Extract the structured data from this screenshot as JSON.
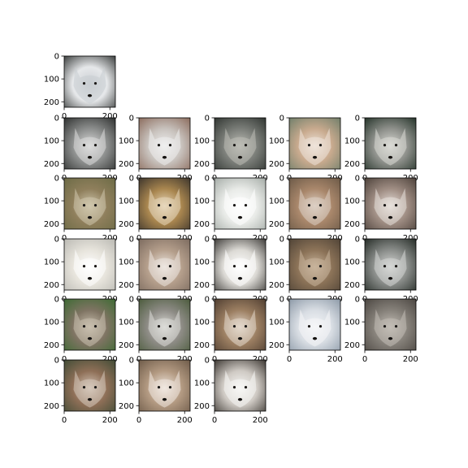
{
  "figure": {
    "background": "#ffffff",
    "axis_color": "#000000"
  },
  "chart_data": {
    "type": "image-grid",
    "title": "",
    "xlabel": "",
    "ylabel": "",
    "xlim": [
      0,
      224
    ],
    "ylim": [
      224,
      0
    ],
    "x_ticks": [
      0,
      200
    ],
    "y_ticks": [
      0,
      100,
      200
    ],
    "grid": false,
    "panels": [
      {
        "row": 0,
        "col": 0,
        "subject": "white wolf, dark background",
        "palette": [
          "#3a3d3c",
          "#e6e8ea",
          "#c9cdd2"
        ]
      },
      {
        "row": 1,
        "col": 0,
        "subject": "grey wolf, dark background",
        "palette": [
          "#2d2f2e",
          "#8d8f8e",
          "#dcdcdc"
        ]
      },
      {
        "row": 1,
        "col": 1,
        "subject": "pale grey wolf, brown background",
        "palette": [
          "#8a6a5b",
          "#c8c2bd",
          "#efefef"
        ]
      },
      {
        "row": 1,
        "col": 2,
        "subject": "grey wolf, dark forest",
        "palette": [
          "#2f3430",
          "#7b7e79",
          "#bdbdb6"
        ]
      },
      {
        "row": 1,
        "col": 3,
        "subject": "light tan wolf, green background",
        "palette": [
          "#6f7e6a",
          "#c8aa8e",
          "#eee4da"
        ]
      },
      {
        "row": 1,
        "col": 4,
        "subject": "grey wolf, dark green background",
        "palette": [
          "#233228",
          "#8f918c",
          "#dadad5"
        ]
      },
      {
        "row": 2,
        "col": 0,
        "subject": "olive grey wolf",
        "palette": [
          "#6b6a45",
          "#8f7f5c",
          "#cfc7ad"
        ]
      },
      {
        "row": 2,
        "col": 1,
        "subject": "tan wolf, dark background",
        "palette": [
          "#3b342c",
          "#a9864f",
          "#e8d8bd"
        ]
      },
      {
        "row": 2,
        "col": 2,
        "subject": "white wolf, soft background",
        "palette": [
          "#a4aba6",
          "#e9ebe8",
          "#ffffff"
        ]
      },
      {
        "row": 2,
        "col": 3,
        "subject": "brown grey wolf",
        "palette": [
          "#6b5947",
          "#a9876b",
          "#ddd0c4"
        ]
      },
      {
        "row": 2,
        "col": 4,
        "subject": "grey wolf open mouth, dark background",
        "palette": [
          "#4b4039",
          "#a08e84",
          "#e8e1dc"
        ]
      },
      {
        "row": 3,
        "col": 0,
        "subject": "white wolf",
        "palette": [
          "#b9b8b2",
          "#e7e4dc",
          "#ffffff"
        ]
      },
      {
        "row": 3,
        "col": 1,
        "subject": "grey tan wolf open mouth",
        "palette": [
          "#7b6a5e",
          "#b59f8c",
          "#ede6e0"
        ]
      },
      {
        "row": 3,
        "col": 2,
        "subject": "white wolf, dark background",
        "palette": [
          "#3c3a37",
          "#dcdad5",
          "#ffffff"
        ]
      },
      {
        "row": 3,
        "col": 3,
        "subject": "brown wolf",
        "palette": [
          "#4f4336",
          "#8c7358",
          "#c8b49c"
        ]
      },
      {
        "row": 3,
        "col": 4,
        "subject": "grey wolf, dark background",
        "palette": [
          "#232a25",
          "#8a8d8a",
          "#d6d7d5"
        ]
      },
      {
        "row": 4,
        "col": 0,
        "subject": "grey wolf in green grass",
        "palette": [
          "#3c6a32",
          "#7f7463",
          "#c9bfae"
        ]
      },
      {
        "row": 4,
        "col": 1,
        "subject": "grey wolf, green background",
        "palette": [
          "#4a5a3b",
          "#8e8c86",
          "#dcdcd8"
        ]
      },
      {
        "row": 4,
        "col": 2,
        "subject": "brown wolf in snow",
        "palette": [
          "#4e3d30",
          "#9c7f62",
          "#e3d8cc"
        ]
      },
      {
        "row": 4,
        "col": 3,
        "subject": "white wolf, blue background",
        "palette": [
          "#8b98a6",
          "#d8dde3",
          "#f5f6f8"
        ]
      },
      {
        "row": 4,
        "col": 4,
        "subject": "grey wolf, rocky background",
        "palette": [
          "#4a4540",
          "#86817a",
          "#c3beb6"
        ]
      },
      {
        "row": 5,
        "col": 0,
        "subject": "brown grey wolf, green background",
        "palette": [
          "#3f4b35",
          "#8e6f57",
          "#d6c8bb"
        ]
      },
      {
        "row": 5,
        "col": 1,
        "subject": "tan wolf open mouth",
        "palette": [
          "#6d5a48",
          "#b39a82",
          "#f0e8e0"
        ]
      },
      {
        "row": 5,
        "col": 2,
        "subject": "white wolf lying, dark background",
        "palette": [
          "#3a3530",
          "#cfcac4",
          "#f7f7f5"
        ]
      }
    ]
  }
}
